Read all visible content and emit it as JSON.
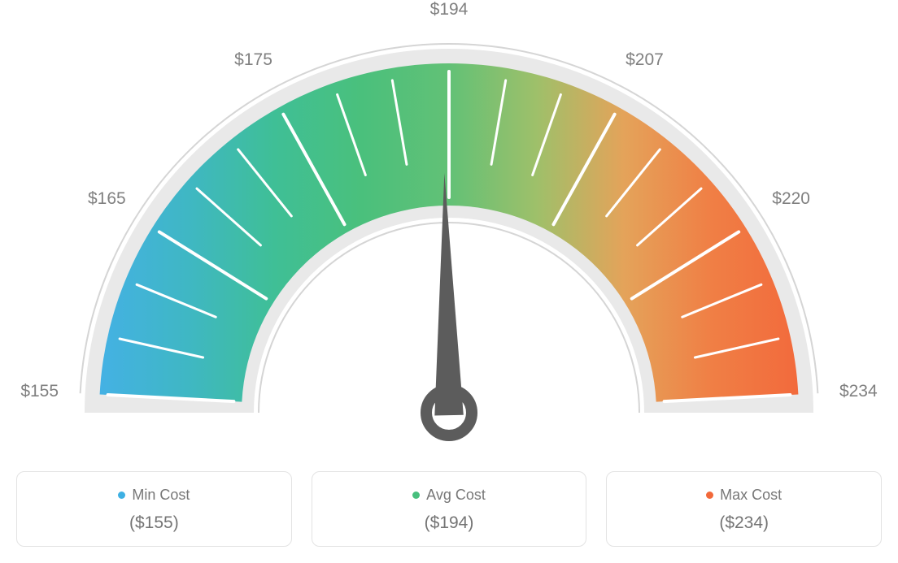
{
  "gauge": {
    "type": "gauge",
    "min": 155,
    "max": 234,
    "avg": 194,
    "needle_value": 194,
    "tick_labels": [
      "$155",
      "$165",
      "$175",
      "$194",
      "$207",
      "$220",
      "$234"
    ],
    "arc_outer_radius": 430,
    "arc_inner_radius": 255,
    "track_outer_radius": 448,
    "track_inner_radius": 240,
    "track_color": "#e9e9e9",
    "track_border": "#d5d5d5",
    "gradient_colors": [
      "#44b1e4",
      "#3fb7c4",
      "#3fbf96",
      "#4ac07c",
      "#62c176",
      "#9ec06a",
      "#e4a35a",
      "#f07f45",
      "#f26a3c"
    ],
    "tick_major_color": "#ffffff",
    "tick_minor_color": "#ffffff",
    "needle_color": "#5c5c5c",
    "background_color": "#ffffff",
    "label_fontsize": 21,
    "label_color": "#808080"
  },
  "cards": {
    "min": {
      "label": "Min Cost",
      "value": "($155)",
      "dot_color": "#3eb0e3"
    },
    "avg": {
      "label": "Avg Cost",
      "value": "($194)",
      "dot_color": "#48bf7d"
    },
    "max": {
      "label": "Max Cost",
      "value": "($234)",
      "dot_color": "#f2693a"
    }
  }
}
